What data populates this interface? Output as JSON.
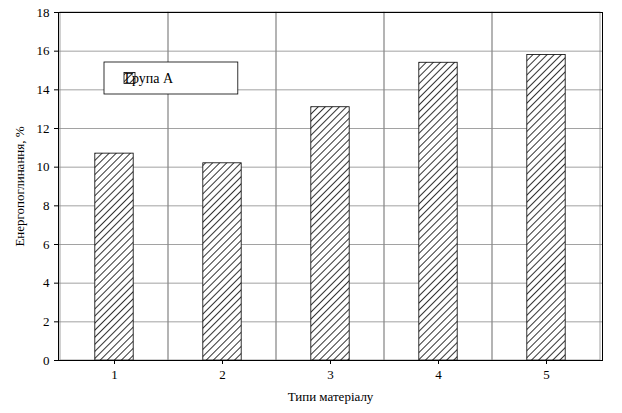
{
  "chart_data": {
    "type": "bar",
    "x_label": "Типи матеріалу",
    "y_label": "Енергопоглинання, %",
    "categories": [
      "1",
      "2",
      "3",
      "4",
      "5"
    ],
    "series": [
      {
        "name": "Група А",
        "color": "#000000",
        "values": [
          10.7,
          10.2,
          13.1,
          15.4,
          15.8
        ]
      }
    ],
    "ylim": [
      0,
      18
    ],
    "yticks": [
      0,
      2,
      4,
      6,
      8,
      10,
      12,
      14,
      16,
      18
    ],
    "grid": true,
    "legend": "upper left"
  }
}
